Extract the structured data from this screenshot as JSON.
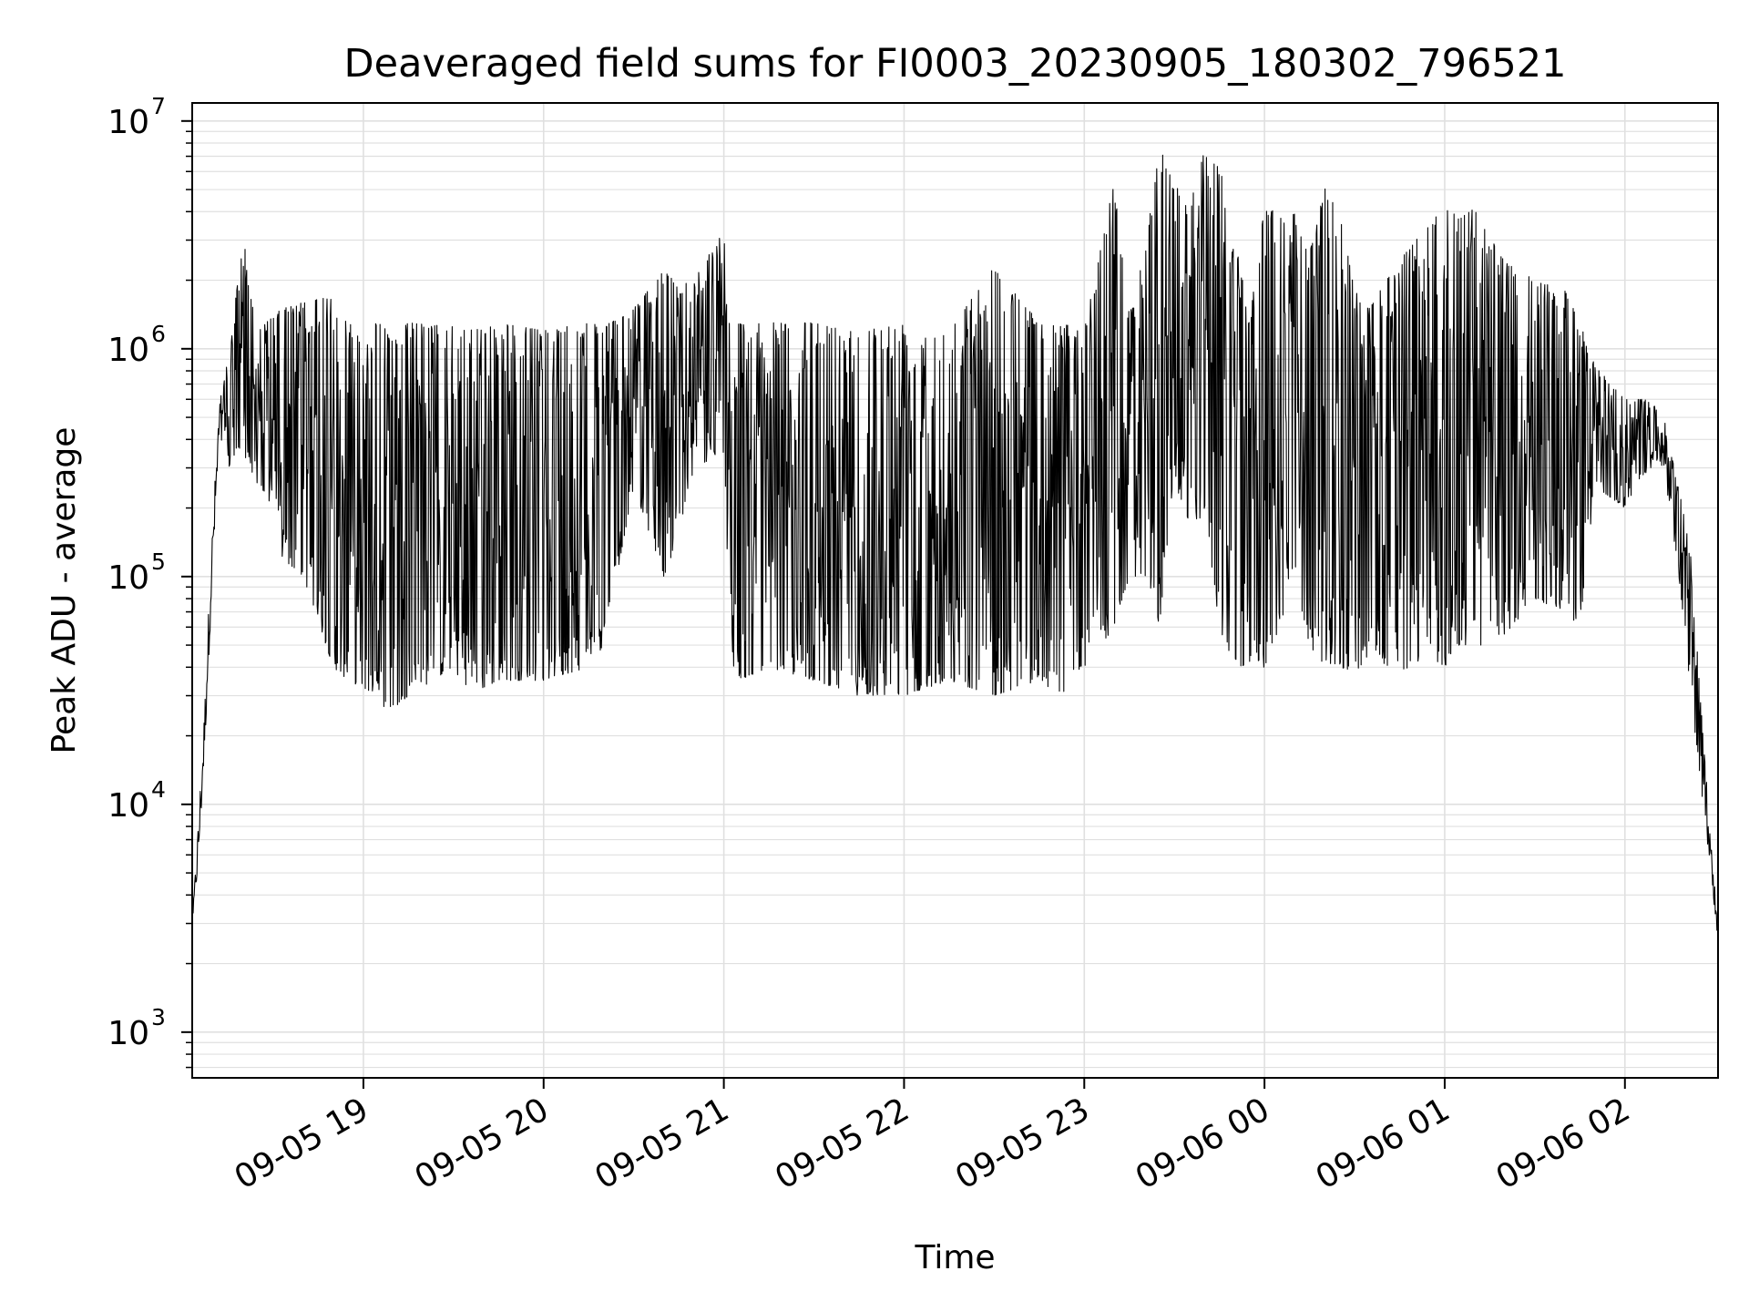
{
  "chart_data": {
    "type": "line",
    "title": "Deaveraged field sums for FI0003_20230905_180302_796521",
    "xlabel": "Time",
    "ylabel": "Peak ADU - average",
    "y_scale": "log",
    "ylim": [
      630,
      12000000
    ],
    "xlim": [
      "2023-09-05 18:03",
      "2023-09-06 02:31"
    ],
    "grid": true,
    "line_color": "#000000",
    "grid_color": "#e0e0e0",
    "x_ticks": [
      {
        "t": "2023-09-05 19:00",
        "label": "09-05 19"
      },
      {
        "t": "2023-09-05 20:00",
        "label": "09-05 20"
      },
      {
        "t": "2023-09-05 21:00",
        "label": "09-05 21"
      },
      {
        "t": "2023-09-05 22:00",
        "label": "09-05 22"
      },
      {
        "t": "2023-09-05 23:00",
        "label": "09-05 23"
      },
      {
        "t": "2023-09-06 00:00",
        "label": "09-06 00"
      },
      {
        "t": "2023-09-06 01:00",
        "label": "09-06 01"
      },
      {
        "t": "2023-09-06 02:00",
        "label": "09-06 02"
      }
    ],
    "y_ticks": [
      {
        "value": 1000,
        "base": "10",
        "exp": "3"
      },
      {
        "value": 10000,
        "base": "10",
        "exp": "4"
      },
      {
        "value": 100000,
        "base": "10",
        "exp": "5"
      },
      {
        "value": 1000000,
        "base": "10",
        "exp": "6"
      },
      {
        "value": 10000000,
        "base": "10",
        "exp": "7"
      }
    ],
    "series": [
      {
        "x": [
          "2023-09-05 18:03",
          "2023-09-05 18:05",
          "2023-09-05 18:07",
          "2023-09-05 18:09",
          "2023-09-05 18:12",
          "2023-09-05 18:15",
          "2023-09-05 18:20",
          "2023-09-05 18:25",
          "2023-09-05 18:30",
          "2023-09-05 18:33",
          "2023-09-05 18:40",
          "2023-09-05 18:50",
          "2023-09-05 18:55",
          "2023-09-05 19:05",
          "2023-09-05 19:08",
          "2023-09-05 19:15",
          "2023-09-05 19:30",
          "2023-09-05 19:35",
          "2023-09-05 19:45",
          "2023-09-05 20:00",
          "2023-09-05 20:15",
          "2023-09-05 20:20",
          "2023-09-05 20:30",
          "2023-09-05 20:40",
          "2023-09-05 20:45",
          "2023-09-05 20:50",
          "2023-09-05 21:00",
          "2023-09-05 21:02",
          "2023-09-05 21:05",
          "2023-09-05 21:15",
          "2023-09-05 21:30",
          "2023-09-05 21:45",
          "2023-09-05 22:00",
          "2023-09-05 22:15",
          "2023-09-05 22:30",
          "2023-09-05 22:45",
          "2023-09-05 22:52",
          "2023-09-05 23:00",
          "2023-09-05 23:10",
          "2023-09-05 23:15",
          "2023-09-05 23:20",
          "2023-09-05 23:25",
          "2023-09-05 23:30",
          "2023-09-05 23:35",
          "2023-09-05 23:40",
          "2023-09-05 23:45",
          "2023-09-05 23:50",
          "2023-09-05 23:55",
          "2023-09-06 00:00",
          "2023-09-06 00:05",
          "2023-09-06 00:10",
          "2023-09-06 00:15",
          "2023-09-06 00:20",
          "2023-09-06 00:25",
          "2023-09-06 00:30",
          "2023-09-06 00:35",
          "2023-09-06 00:45",
          "2023-09-06 00:55",
          "2023-09-06 01:00",
          "2023-09-06 01:05",
          "2023-09-06 01:10",
          "2023-09-06 01:15",
          "2023-09-06 01:20",
          "2023-09-06 01:30",
          "2023-09-06 01:40",
          "2023-09-06 01:45",
          "2023-09-06 01:50",
          "2023-09-06 02:00",
          "2023-09-06 02:08",
          "2023-09-06 02:13",
          "2023-09-06 02:18",
          "2023-09-06 02:22",
          "2023-09-06 02:26",
          "2023-09-06 02:31"
        ],
        "hi": [
          3000,
          8500,
          25000,
          110000,
          600000,
          900000,
          3100000,
          1200000,
          1400000,
          1500000,
          1600000,
          1700000,
          1300000,
          1300000,
          1200000,
          1300000,
          1250000,
          1200000,
          1300000,
          1200000,
          1300000,
          1250000,
          1500000,
          2200000,
          1900000,
          2000000,
          3400000,
          1200000,
          1300000,
          1300000,
          1300000,
          1200000,
          1300000,
          1200000,
          2300000,
          1300000,
          1300000,
          1200000,
          5500000,
          1400000,
          2600000,
          7600000,
          5600000,
          4300000,
          7400000,
          6500000,
          3400000,
          1300000,
          4200000,
          4100000,
          3900000,
          2600000,
          5200000,
          4000000,
          1800000,
          1500000,
          2500000,
          3500000,
          4300000,
          3700000,
          4200000,
          3100000,
          2400000,
          2000000,
          1800000,
          1300000,
          850000,
          600000,
          600000,
          500000,
          250000,
          120000,
          20000,
          3000
        ],
        "lo": [
          3000,
          5000,
          15000,
          60000,
          350000,
          300000,
          350000,
          250000,
          200000,
          120000,
          100000,
          40000,
          35000,
          30000,
          25000,
          30000,
          40000,
          30000,
          35000,
          35000,
          40000,
          50000,
          250000,
          100000,
          150000,
          300000,
          350000,
          40000,
          35000,
          40000,
          35000,
          30000,
          30000,
          35000,
          30000,
          35000,
          30000,
          40000,
          60000,
          100000,
          100000,
          60000,
          300000,
          120000,
          200000,
          60000,
          40000,
          40000,
          40000,
          60000,
          100000,
          50000,
          40000,
          40000,
          38000,
          45000,
          38000,
          45000,
          40000,
          50000,
          50000,
          50000,
          55000,
          80000,
          70000,
          60000,
          250000,
          200000,
          300000,
          300000,
          100000,
          30000,
          10000,
          2500
        ]
      }
    ]
  }
}
